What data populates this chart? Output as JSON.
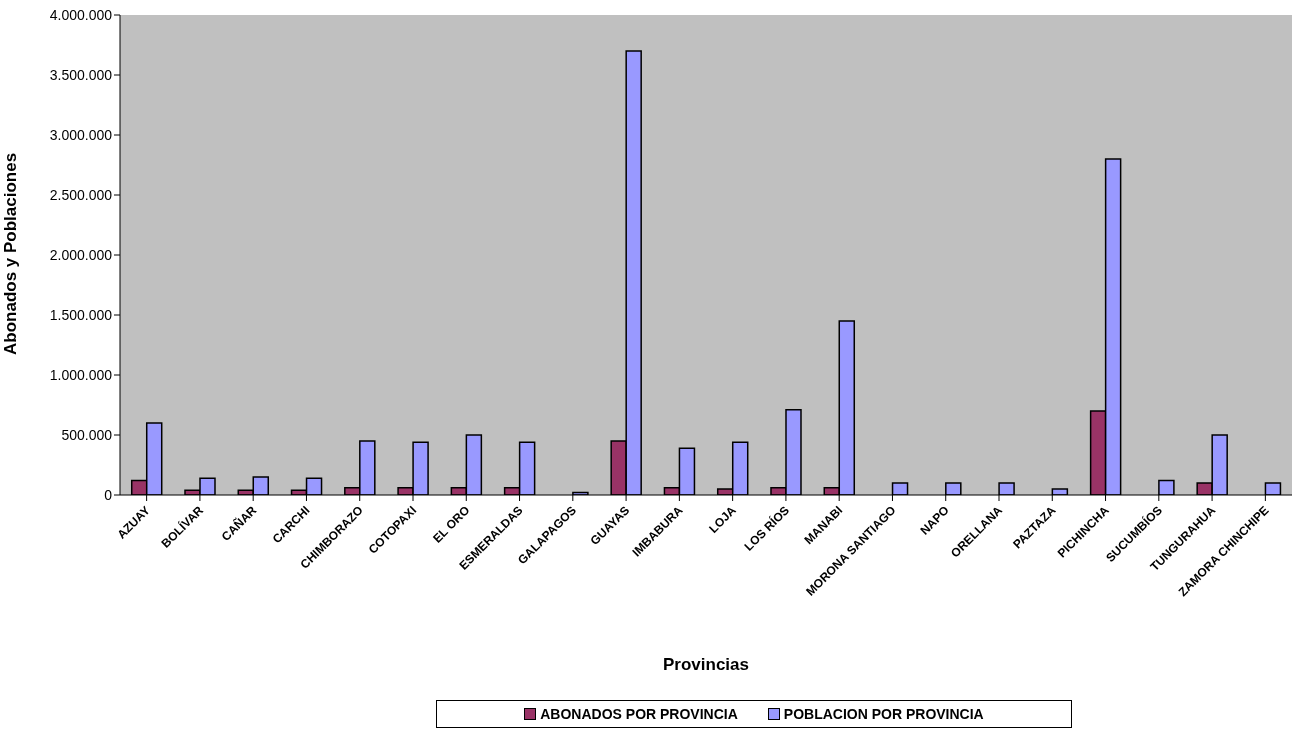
{
  "chart_data": {
    "type": "bar",
    "xlabel": "Provincias",
    "ylabel": "Abonados y Poblaciones",
    "categories": [
      "AZUAY",
      "BOLÍVAR",
      "CAÑAR",
      "CARCHI",
      "CHIMBORAZO",
      "COTOPAXI",
      "EL ORO",
      "ESMERALDAS",
      "GALAPAGOS",
      "GUAYAS",
      "IMBABURA",
      "LOJA",
      "LOS RÍOS",
      "MANABI",
      "MORONA SANTIAGO",
      "NAPO",
      "ORELLANA",
      "PAZTAZA",
      "PICHINCHA",
      "SUCUMBÍOS",
      "TUNGURAHUA",
      "ZAMORA CHINCHIPE"
    ],
    "series": [
      {
        "name": "ABONADOS POR PROVINCIA",
        "color": "#993366",
        "values": [
          120000,
          40000,
          40000,
          40000,
          60000,
          60000,
          60000,
          60000,
          null,
          450000,
          60000,
          50000,
          60000,
          60000,
          null,
          0,
          0,
          null,
          700000,
          null,
          100000,
          0
        ]
      },
      {
        "name": "POBLACION POR PROVINCIA",
        "color": "#9999ff",
        "values": [
          600000,
          140000,
          150000,
          140000,
          450000,
          440000,
          500000,
          440000,
          20000,
          3700000,
          390000,
          440000,
          710000,
          1450000,
          100000,
          100000,
          100000,
          50000,
          2800000,
          120000,
          500000,
          100000
        ]
      }
    ],
    "ylim": [
      0,
      4000000
    ],
    "yticks": [
      0,
      {
        "value": 500000,
        "label": "500.000"
      },
      {
        "value": 1000000,
        "label": "1.000.000"
      },
      {
        "value": 1500000,
        "label": "1.500.000"
      },
      {
        "value": 2000000,
        "label": "2.000.000"
      },
      {
        "value": 2500000,
        "label": "2.500.000"
      },
      {
        "value": 3000000,
        "label": "3.000.000"
      },
      {
        "value": 3500000,
        "label": "3.500.000"
      },
      {
        "value": 4000000,
        "label": "4.000.000"
      }
    ],
    "legend": "bottom"
  }
}
